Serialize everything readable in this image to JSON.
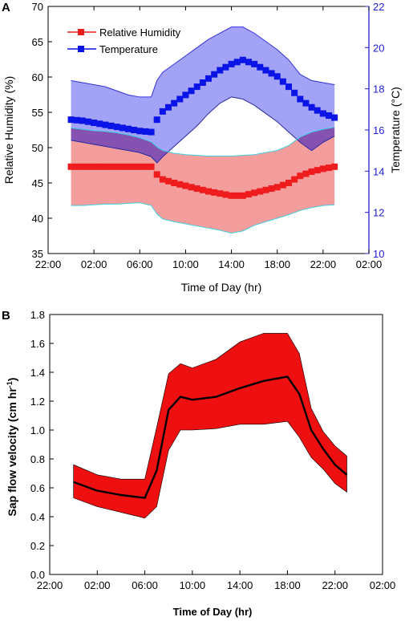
{
  "chart_data": [
    {
      "panel_label": "A",
      "type": "line",
      "xlabel": "Time of Day (hr)",
      "ylabel": "Relative Humidity (%)",
      "y2label": "Temperature (°C)",
      "xlim": [
        -2,
        26
      ],
      "ylim": [
        35,
        70
      ],
      "y2lim": [
        10,
        22
      ],
      "xticks": [
        -2,
        2,
        6,
        10,
        14,
        18,
        22,
        26
      ],
      "xtick_labels": [
        "22:00",
        "02:00",
        "06:00",
        "10:00",
        "14:00",
        "18:00",
        "22:00",
        "02:00"
      ],
      "yticks": [
        35,
        40,
        45,
        50,
        55,
        60,
        65,
        70
      ],
      "y2ticks": [
        10,
        12,
        14,
        16,
        18,
        20,
        22
      ],
      "legend_position": "top-left",
      "colors": {
        "rh": "#ee1c1c",
        "rh_band": "#f08484",
        "temp": "#0a14e6",
        "temp_band": "#7a7af2",
        "overlap": "#7b4bb5",
        "band_edge": "#3fd0e0",
        "right_axis": "#2020d0"
      },
      "series": [
        {
          "name": "Relative Humidity",
          "axis": "left",
          "x": [
            0,
            1,
            2,
            3,
            4,
            5,
            6,
            7,
            7.5,
            8,
            9,
            10,
            11,
            12,
            13,
            14,
            15,
            16,
            17,
            18,
            19,
            20,
            21,
            22,
            23
          ],
          "y": [
            47.3,
            47.3,
            47.3,
            47.3,
            47.3,
            47.3,
            47.3,
            47.3,
            46.2,
            45.5,
            45,
            44.6,
            44.2,
            43.8,
            43.5,
            43.2,
            43.2,
            43.6,
            44,
            44.4,
            45,
            46,
            46.6,
            47,
            47.3
          ],
          "upper": [
            52.8,
            52.6,
            52.4,
            52.3,
            52.1,
            51.8,
            51.4,
            50.8,
            50.1,
            49.6,
            49.2,
            49,
            48.9,
            48.8,
            48.8,
            48.8,
            48.9,
            49,
            49.3,
            49.6,
            50.3,
            51.5,
            52.2,
            52.6,
            52.9
          ],
          "lower": [
            41.8,
            41.8,
            41.9,
            42,
            42,
            42.1,
            42.2,
            41.8,
            40.6,
            39.9,
            39.5,
            39.2,
            38.9,
            38.6,
            38.3,
            37.9,
            38.2,
            39,
            39.5,
            40,
            40.5,
            41.1,
            41.5,
            41.8,
            41.9
          ]
        },
        {
          "name": "Temperature",
          "axis": "right",
          "x": [
            0,
            1,
            2,
            3,
            4,
            5,
            6,
            7,
            7.5,
            8,
            9,
            10,
            11,
            12,
            13,
            14,
            15,
            16,
            17,
            18,
            19,
            20,
            21,
            22,
            23
          ],
          "y": [
            16.5,
            16.45,
            16.35,
            16.25,
            16.15,
            16.05,
            15.95,
            15.9,
            16.5,
            16.9,
            17.3,
            17.7,
            18.1,
            18.5,
            18.9,
            19.2,
            19.4,
            19.2,
            18.9,
            18.6,
            18.1,
            17.5,
            17.1,
            16.8,
            16.6
          ],
          "upper": [
            18.4,
            18.3,
            18.2,
            18.1,
            17.9,
            17.7,
            17.6,
            17.6,
            18.4,
            18.8,
            19.2,
            19.6,
            20,
            20.4,
            20.7,
            21,
            21,
            20.7,
            20.3,
            19.9,
            19.4,
            18.7,
            18.4,
            18.3,
            18.2
          ],
          "lower": [
            15.5,
            15.4,
            15.3,
            15.2,
            15.1,
            15,
            14.9,
            14.7,
            14.4,
            14.7,
            15.2,
            15.7,
            16.2,
            16.8,
            17.3,
            17.6,
            17.5,
            17.2,
            16.8,
            16.4,
            15.9,
            15.4,
            15,
            15.4,
            15.7
          ]
        }
      ]
    },
    {
      "panel_label": "B",
      "type": "line",
      "xlabel": "Time of Day (hr)",
      "ylabel_prefix": "Sap flow velocity (cm hr",
      "ylabel_sup": "-1",
      "ylabel_suffix": ")",
      "xlim": [
        -2,
        26
      ],
      "ylim": [
        0,
        1.8
      ],
      "xticks": [
        -2,
        2,
        6,
        10,
        14,
        18,
        22,
        26
      ],
      "xtick_labels": [
        "22:00",
        "02:00",
        "06:00",
        "10:00",
        "14:00",
        "18:00",
        "22:00",
        "02:00"
      ],
      "yticks": [
        0,
        0.2,
        0.4,
        0.6,
        0.8,
        1,
        1.2,
        1.4,
        1.6,
        1.8
      ],
      "ytick_labels": [
        "0.0",
        "0.2",
        "0.4",
        "0.6",
        "0.8",
        "1.0",
        "1.2",
        "1.4",
        "1.6",
        "1.8"
      ],
      "colors": {
        "line": "#000000",
        "band": "#ee1010"
      },
      "series": [
        {
          "x": [
            0,
            2,
            4,
            6,
            7,
            8,
            9,
            10,
            12,
            14,
            16,
            18,
            19,
            20,
            21,
            22,
            23
          ],
          "y": [
            0.64,
            0.58,
            0.55,
            0.53,
            0.72,
            1.14,
            1.23,
            1.21,
            1.23,
            1.29,
            1.34,
            1.37,
            1.25,
            1.0,
            0.87,
            0.76,
            0.69
          ],
          "upper": [
            0.76,
            0.69,
            0.66,
            0.66,
            1.02,
            1.39,
            1.46,
            1.43,
            1.49,
            1.61,
            1.67,
            1.67,
            1.53,
            1.15,
            0.99,
            0.89,
            0.82
          ],
          "lower": [
            0.53,
            0.47,
            0.43,
            0.39,
            0.47,
            0.86,
            1.0,
            1.0,
            1.01,
            1.04,
            1.04,
            1.06,
            0.95,
            0.81,
            0.73,
            0.63,
            0.57
          ]
        }
      ]
    }
  ]
}
